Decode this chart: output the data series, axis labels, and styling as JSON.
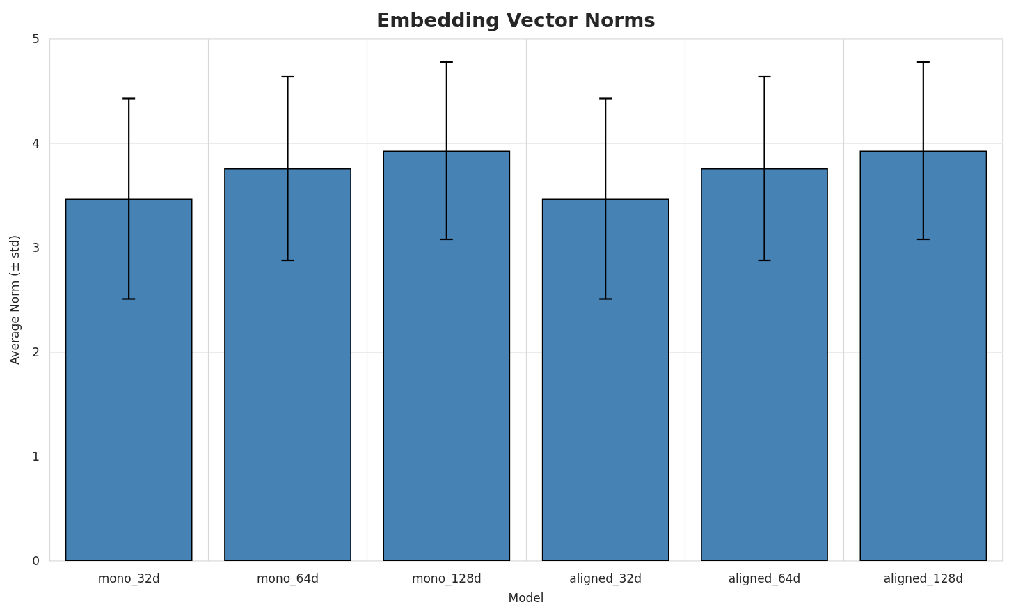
{
  "chart_data": {
    "type": "bar",
    "title": "Embedding Vector Norms",
    "xlabel": "Model",
    "ylabel": "Average Norm (± std)",
    "categories": [
      "mono_32d",
      "mono_64d",
      "mono_128d",
      "aligned_32d",
      "aligned_64d",
      "aligned_128d"
    ],
    "values": [
      3.47,
      3.76,
      3.93,
      3.47,
      3.76,
      3.93
    ],
    "errors": [
      0.96,
      0.88,
      0.85,
      0.96,
      0.88,
      0.85
    ],
    "color": "#4682b4",
    "ylim": [
      0,
      5
    ],
    "yticks": [
      0,
      1,
      2,
      3,
      4,
      5
    ],
    "grid": true
  }
}
